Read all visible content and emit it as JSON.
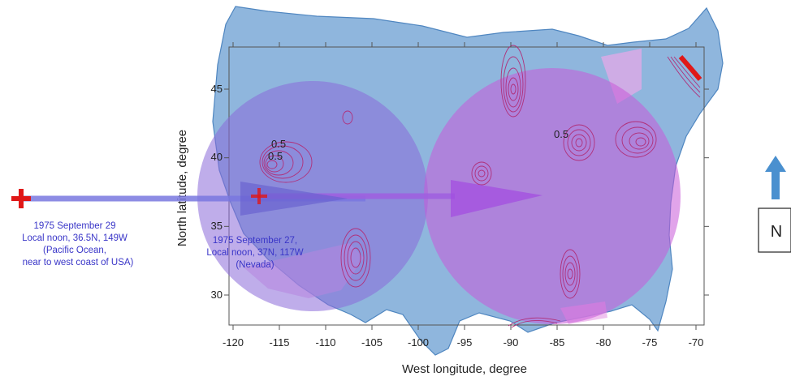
{
  "map": {
    "xlabel": "West longitude, degree",
    "ylabel": "North latitude, degree",
    "x_ticks": [
      "-120",
      "-115",
      "-110",
      "-105",
      "-100",
      "-95",
      "-90",
      "-85",
      "-80",
      "-75",
      "-70"
    ],
    "y_ticks": [
      "45",
      "40",
      "35",
      "30"
    ],
    "contour_labels": [
      "0.5",
      "0.5",
      "0.5"
    ],
    "markers": [
      {
        "id": "pacific",
        "lines": [
          "1975 September 29",
          "Local noon, 36.5N, 149W",
          "(Pacific Ocean,",
          "near to west coast of USA)"
        ]
      },
      {
        "id": "nevada",
        "lines": [
          "1975 September 27,",
          "Local noon, 37N, 117W",
          "(Nevada)"
        ]
      }
    ],
    "north_label": "N",
    "colors": {
      "land": "#8fb6dd",
      "land_stroke": "#4f86c0",
      "circle_left": "#8a6ad8",
      "circle_right": "#c85ad8",
      "pink_overlay": "#e9a8e8",
      "arrow_line": "#7a78e0",
      "marker": "#e01818",
      "north_arrow": "#4a90cf"
    }
  }
}
